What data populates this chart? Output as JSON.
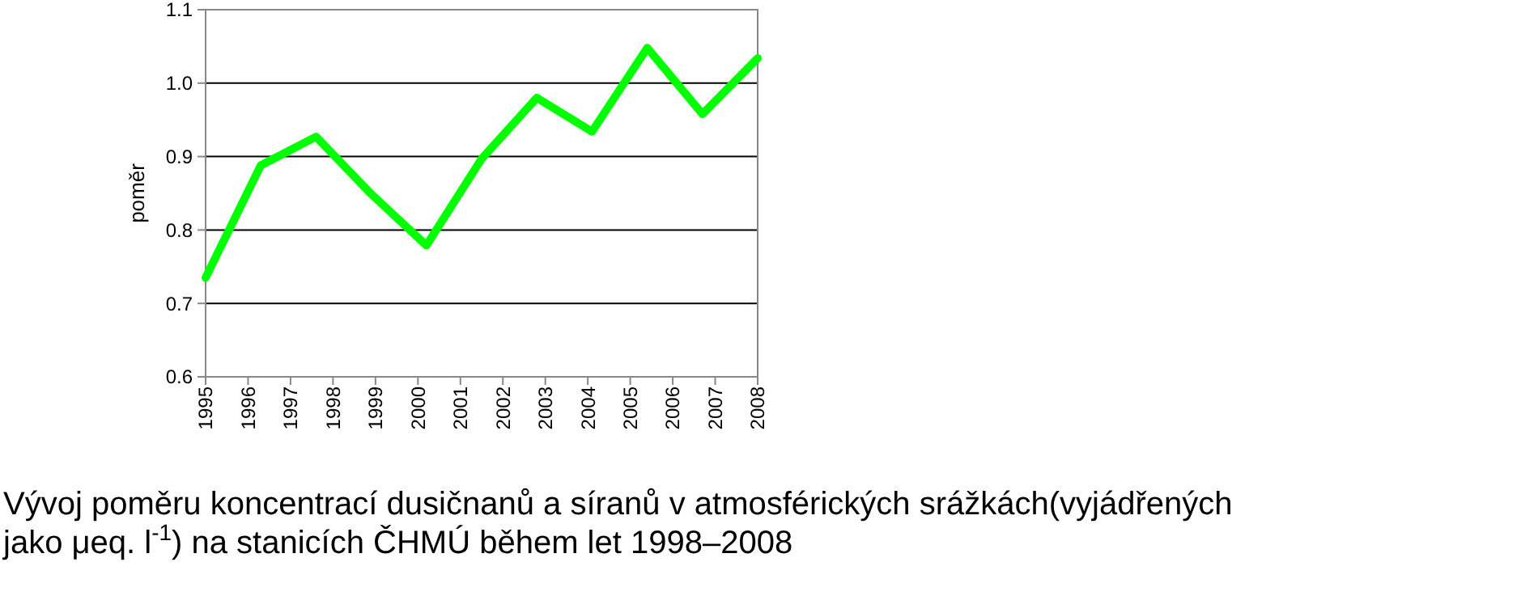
{
  "chart_data": {
    "type": "line",
    "ylabel": "poměr",
    "x": [
      1995,
      1996.3,
      1997.6,
      1998.9,
      2000.2,
      2001.5,
      2002.8,
      2004.1,
      2005.4,
      2006.7,
      2008
    ],
    "series": [
      {
        "color": "#00ff00",
        "values": [
          0.735,
          0.888,
          0.927,
          0.849,
          0.779,
          0.897,
          0.98,
          0.934,
          1.048,
          0.958,
          1.034
        ]
      }
    ],
    "xlim": [
      1995,
      2008
    ],
    "xticks": [
      1995,
      1996,
      1997,
      1998,
      1999,
      2000,
      2001,
      2002,
      2003,
      2004,
      2005,
      2006,
      2007,
      2008
    ],
    "ylim": [
      0.6,
      1.1
    ],
    "yticks": [
      {
        "value": 0.6,
        "label": "0.6"
      },
      {
        "value": 0.7,
        "label": "0.7"
      },
      {
        "value": 0.8,
        "label": "0.8"
      },
      {
        "value": 0.9,
        "label": "0.9"
      },
      {
        "value": 1.0,
        "label": "1.0"
      },
      {
        "value": 1.1,
        "label": "1.1"
      }
    ],
    "grid": "y",
    "marker": "none",
    "line_style": "solid",
    "annotations": [
      "Vývoj poměru koncentrací dusičnanů a síranů v atmosférických srážkách(vyjádřených jako μeq. l$^{-1}$) na stanicích ČHMÚ během let 1998–2008"
    ]
  }
}
